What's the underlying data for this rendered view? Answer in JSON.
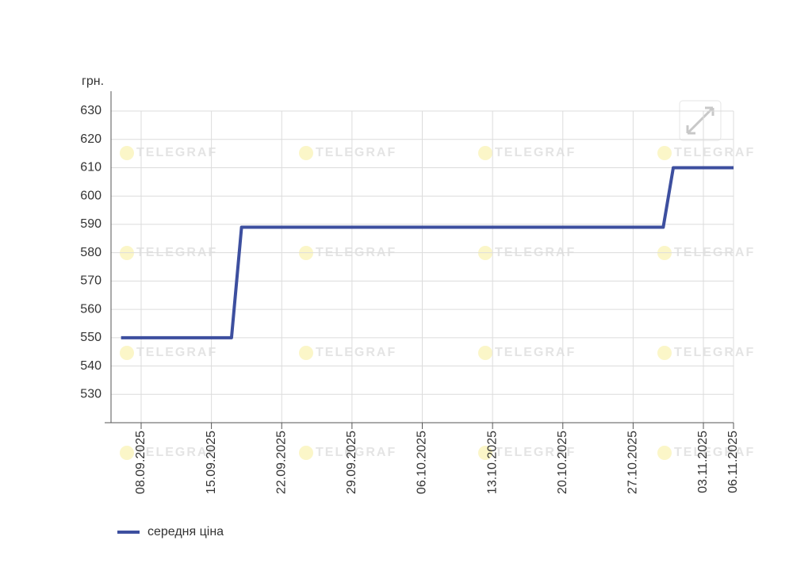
{
  "chart_data": {
    "type": "line",
    "y_label": "грн.",
    "watermark": "TELEGRAF",
    "x": [
      "06.09.2025",
      "17.09.2025",
      "18.09.2025",
      "30.10.2025",
      "31.10.2025",
      "06.11.2025"
    ],
    "series": [
      {
        "name": "середня ціна",
        "color": "#3d4f9f",
        "values": [
          550,
          550,
          589,
          589,
          610,
          610
        ]
      }
    ],
    "xlim": [
      "05.09.2025",
      "06.11.2025"
    ],
    "xticks": [
      "08.09.2025",
      "15.09.2025",
      "22.09.2025",
      "29.09.2025",
      "06.10.2025",
      "13.10.2025",
      "20.10.2025",
      "27.10.2025",
      "03.11.2025",
      "06.11.2025"
    ],
    "ylim": [
      520,
      637
    ],
    "yticks": [
      530,
      540,
      550,
      560,
      570,
      580,
      590,
      600,
      610,
      620,
      630
    ],
    "grid": true
  }
}
